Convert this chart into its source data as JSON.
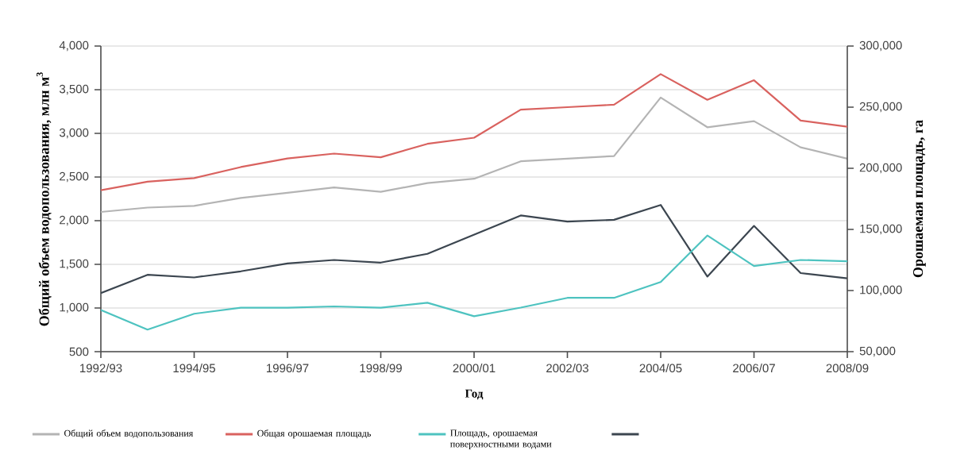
{
  "chart_data": {
    "type": "line",
    "xlabel": "Год",
    "ylabel": "Общий объем водопользования, млн м$^{3}$",
    "y2label": "Орошаемая площадь, га",
    "categories": [
      "1992/93",
      null,
      "1994/95",
      null,
      "1996/97",
      null,
      "1998/99",
      null,
      "2000/01",
      null,
      "2002/03",
      null,
      "2004/05",
      null,
      "2006/07",
      null,
      "2008/09"
    ],
    "series": [
      {
        "name": "Общий объем водопользования",
        "color": "#b4b4b4",
        "values": [
          2100,
          2150,
          2170,
          2260,
          2320,
          2380,
          2330,
          2430,
          2480,
          2680,
          2710,
          2740,
          3410,
          3070,
          3140,
          2840,
          2710
        ]
      },
      {
        "name": "Общая орошаемая площадь",
        "color": "#d9625f",
        "axis": "y2",
        "values": [
          182000,
          189000,
          192000,
          201000,
          208000,
          212000,
          209000,
          220000,
          225000,
          248000,
          250000,
          252000,
          277000,
          256000,
          272000,
          239000,
          234000
        ]
      },
      {
        "name": "Площадь, орошаемая поверхностными водами",
        "color": "#4ec3c0",
        "axis": "y2",
        "values": [
          84000,
          68000,
          81000,
          86000,
          86000,
          87000,
          86000,
          90000,
          79000,
          86000,
          94000,
          94000,
          107000,
          145000,
          120000,
          125000,
          124000
        ]
      },
      {
        "color": "#3c4650",
        "values": [
          1170,
          1380,
          1350,
          1420,
          1510,
          1550,
          1520,
          1620,
          1840,
          2060,
          1990,
          2010,
          2180,
          1360,
          1940,
          1400,
          1340
        ]
      }
    ],
    "ylim": [
      500,
      4000
    ],
    "yticks": [
      500,
      {
        "value": 1000,
        "label": "1,000"
      },
      {
        "value": 1500,
        "label": "1,500"
      },
      {
        "value": 2000,
        "label": "2,000"
      },
      {
        "value": 2500,
        "label": "2,500"
      },
      {
        "value": 3000,
        "label": "3,000"
      },
      {
        "value": 3500,
        "label": "3,500"
      },
      {
        "value": 4000,
        "label": "4,000"
      }
    ],
    "y2lim": [
      50000,
      300000
    ],
    "y2ticks": [
      {
        "value": 50000,
        "label": "50,000"
      },
      {
        "value": 100000,
        "label": "100,000"
      },
      {
        "value": 150000,
        "label": "150,000"
      },
      {
        "value": 200000,
        "label": "200,000"
      },
      {
        "value": 250000,
        "label": "250,000"
      },
      {
        "value": 300000,
        "label": "300,000"
      }
    ],
    "grid": "y",
    "legend": "bottom",
    "marker": "none",
    "line_style": "solid"
  }
}
